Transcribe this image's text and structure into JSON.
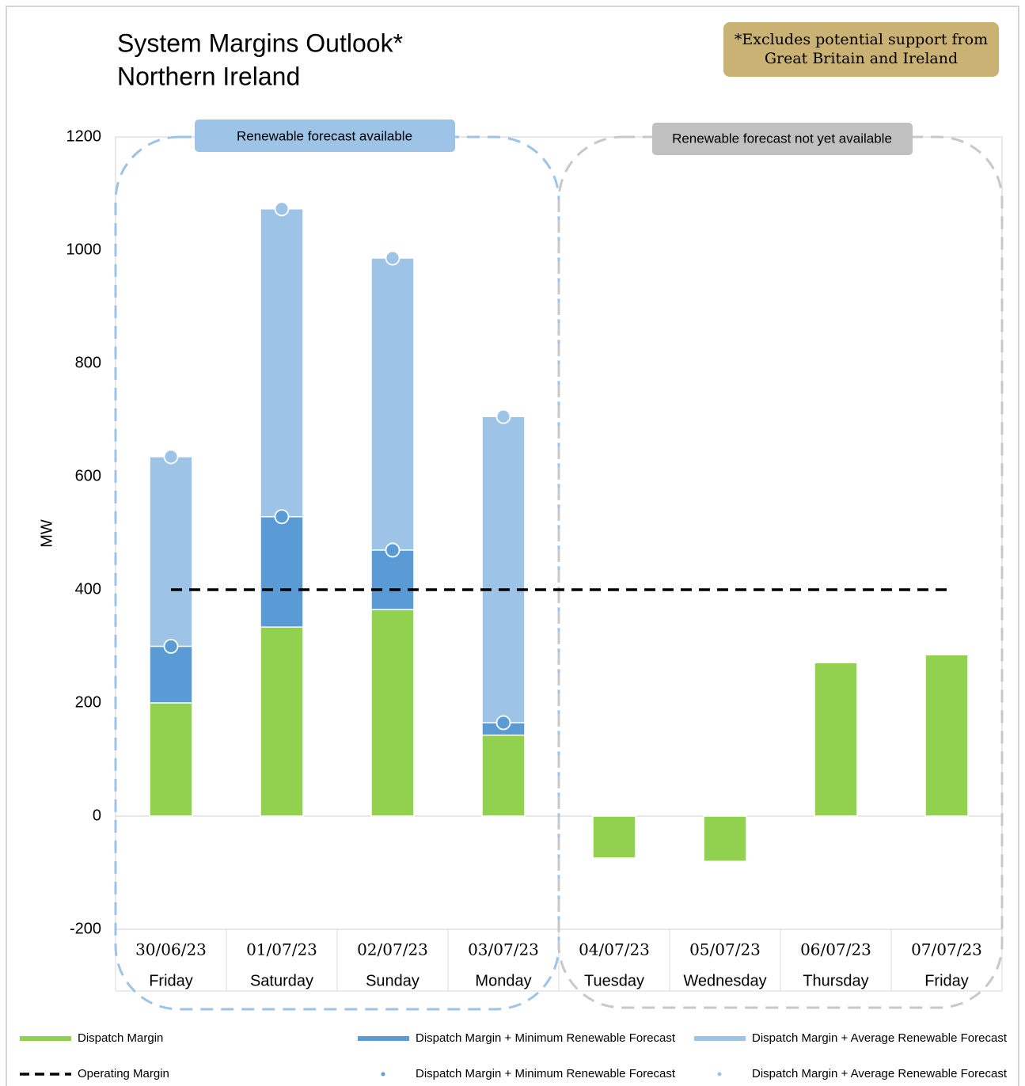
{
  "chart_data": {
    "type": "bar",
    "title": "System Margins Outlook*",
    "subtitle": "Northern Ireland",
    "note": [
      "*Excludes potential support from",
      "Great Britain and Ireland"
    ],
    "regions": [
      "Renewable forecast available",
      "Renewable forecast not yet available"
    ],
    "y_label": "MW",
    "categories": [
      [
        "30/06/23",
        "Friday"
      ],
      [
        "01/07/23",
        "Saturday"
      ],
      [
        "02/07/23",
        "Sunday"
      ],
      [
        "03/07/23",
        "Monday"
      ],
      [
        "04/07/23",
        "Tuesday"
      ],
      [
        "05/07/23",
        "Wednesday"
      ],
      [
        "06/07/23",
        "Thursday"
      ],
      [
        "07/07/23",
        "Friday"
      ]
    ],
    "series": [
      {
        "name": "Dispatch Margin",
        "type": "bar",
        "color": "#92d050",
        "values": [
          200,
          334,
          365,
          143,
          -74,
          -80,
          271,
          285
        ]
      },
      {
        "name": "Dispatch Margin + Minimum Renewable Forecast",
        "type": "bar",
        "color": "#5b9bd5",
        "values": [
          300,
          529,
          470,
          165,
          null,
          null,
          null,
          null
        ]
      },
      {
        "name": "Dispatch Margin + Average Renewable Forecast",
        "type": "bar",
        "color": "#9dc3e6",
        "values": [
          635,
          1073,
          986,
          706,
          null,
          null,
          null,
          null
        ]
      },
      {
        "name": "Operating Margin",
        "type": "line",
        "color": "#000000",
        "values": [
          400,
          400,
          400,
          400,
          400,
          400,
          400,
          400
        ]
      },
      {
        "name": "Dispatch Margin + Minimum Renewable Forecast",
        "type": "marker",
        "color": "#5b9bd5",
        "values": [
          300,
          529,
          470,
          165,
          null,
          null,
          null,
          null
        ]
      },
      {
        "name": "Dispatch Margin + Average Renewable Forecast",
        "type": "marker",
        "color": "#9dc3e6",
        "values": [
          635,
          1073,
          986,
          706,
          null,
          null,
          null,
          null
        ]
      }
    ],
    "ylim": [
      -200,
      1200
    ],
    "yticks": [
      -200,
      0,
      200,
      400,
      600,
      800,
      1000,
      1200
    ],
    "grid": false
  }
}
